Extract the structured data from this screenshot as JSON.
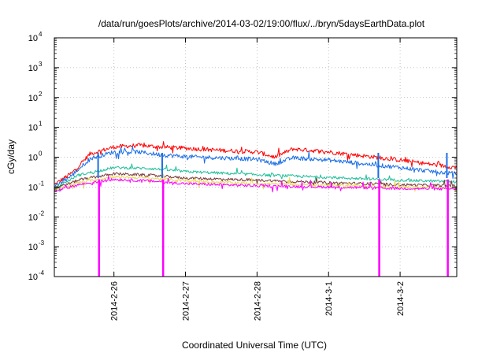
{
  "chart_data": {
    "type": "line",
    "title": "/data/run/goesPlots/archive/2014-03-02/19:00/flux/../bryn/5daysEarthData.plot",
    "xlabel": "Coordinated Universal Time (UTC)",
    "ylabel": "cGy/day",
    "yscale": "log",
    "ylim": [
      0.0001,
      10000
    ],
    "y_ticks": [
      {
        "base": "10",
        "exp": "-4",
        "value": 0.0001
      },
      {
        "base": "10",
        "exp": "-3",
        "value": 0.001
      },
      {
        "base": "10",
        "exp": "-2",
        "value": 0.01
      },
      {
        "base": "10",
        "exp": "-1",
        "value": 0.1
      },
      {
        "base": "10",
        "exp": "0",
        "value": 1
      },
      {
        "base": "10",
        "exp": "1",
        "value": 10
      },
      {
        "base": "10",
        "exp": "2",
        "value": 100
      },
      {
        "base": "10",
        "exp": "3",
        "value": 1000
      },
      {
        "base": "10",
        "exp": "4",
        "value": 10000
      }
    ],
    "xlim": [
      "2014-02-25T04:00",
      "2014-03-02T19:00"
    ],
    "x_ticks": [
      {
        "label": "2014-2-26",
        "value": "2014-02-26T00:00"
      },
      {
        "label": "2014-2-27",
        "value": "2014-02-27T00:00"
      },
      {
        "label": "2014-2-28",
        "value": "2014-02-28T00:00"
      },
      {
        "label": "2014-3-1",
        "value": "2014-03-01T00:00"
      },
      {
        "label": "2014-3-2",
        "value": "2014-03-02T00:00"
      }
    ],
    "grid": true,
    "series": [
      {
        "color": "#ff0000",
        "x": [
          "2014-02-25T04:00",
          "2014-02-25T10:00",
          "2014-02-25T16:00",
          "2014-02-26T00:00",
          "2014-02-26T08:00",
          "2014-02-26T16:00",
          "2014-02-27T00:00",
          "2014-02-27T12:00",
          "2014-02-28T00:00",
          "2014-02-28T06:00",
          "2014-02-28T12:00",
          "2014-03-01T00:00",
          "2014-03-01T12:00",
          "2014-03-02T00:00",
          "2014-03-02T12:00",
          "2014-03-02T19:00"
        ],
        "y": [
          0.12,
          0.3,
          1.3,
          2.2,
          2.5,
          2.2,
          2.0,
          1.7,
          1.5,
          1.0,
          1.9,
          1.5,
          1.1,
          0.8,
          0.55,
          0.45
        ]
      },
      {
        "color": "#1a6ee6",
        "x": [
          "2014-02-25T04:00",
          "2014-02-25T10:00",
          "2014-02-25T16:00",
          "2014-02-26T00:00",
          "2014-02-26T08:00",
          "2014-02-26T16:00",
          "2014-02-27T00:00",
          "2014-02-27T12:00",
          "2014-02-28T00:00",
          "2014-02-28T06:00",
          "2014-02-28T12:00",
          "2014-03-01T00:00",
          "2014-03-01T12:00",
          "2014-03-02T00:00",
          "2014-03-02T12:00",
          "2014-03-02T19:00"
        ],
        "y": [
          0.1,
          0.25,
          0.9,
          1.5,
          1.5,
          1.2,
          1.05,
          0.95,
          0.85,
          0.6,
          0.95,
          0.8,
          0.6,
          0.45,
          0.32,
          0.28
        ]
      },
      {
        "color": "#1fbf9a",
        "x": [
          "2014-02-25T04:00",
          "2014-02-25T12:00",
          "2014-02-26T00:00",
          "2014-02-26T12:00",
          "2014-02-27T00:00",
          "2014-02-28T00:00",
          "2014-03-01T00:00",
          "2014-03-02T00:00",
          "2014-03-02T19:00"
        ],
        "y": [
          0.09,
          0.25,
          0.45,
          0.42,
          0.33,
          0.26,
          0.21,
          0.17,
          0.15
        ]
      },
      {
        "color": "#7b3a3a",
        "x": [
          "2014-02-25T04:00",
          "2014-02-25T12:00",
          "2014-02-26T00:00",
          "2014-02-26T12:00",
          "2014-02-27T00:00",
          "2014-02-28T00:00",
          "2014-03-01T00:00",
          "2014-03-02T00:00",
          "2014-03-02T19:00"
        ],
        "y": [
          0.085,
          0.17,
          0.28,
          0.25,
          0.2,
          0.17,
          0.14,
          0.12,
          0.11
        ]
      },
      {
        "color": "#e6d85a",
        "x": [
          "2014-02-25T04:00",
          "2014-02-25T12:00",
          "2014-02-26T00:00",
          "2014-02-26T12:00",
          "2014-02-27T00:00",
          "2014-02-28T00:00",
          "2014-03-01T00:00",
          "2014-03-02T00:00",
          "2014-03-02T19:00"
        ],
        "y": [
          0.08,
          0.14,
          0.22,
          0.2,
          0.16,
          0.13,
          0.115,
          0.1,
          0.095
        ]
      },
      {
        "color": "#ff00ff",
        "x": [
          "2014-02-25T04:00",
          "2014-02-25T12:00",
          "2014-02-26T00:00",
          "2014-02-26T12:00",
          "2014-02-27T00:00",
          "2014-02-28T00:00",
          "2014-03-01T00:00",
          "2014-03-02T00:00",
          "2014-03-02T19:00"
        ],
        "y": [
          0.07,
          0.12,
          0.18,
          0.16,
          0.13,
          0.11,
          0.1,
          0.09,
          0.085
        ]
      }
    ],
    "dropouts": [
      {
        "x": "2014-02-25T19:00",
        "color": "#ff00ff"
      },
      {
        "x": "2014-02-26T16:30",
        "color": "#ff00ff"
      },
      {
        "x": "2014-03-01T17:00",
        "color": "#ff00ff"
      },
      {
        "x": "2014-03-02T16:00",
        "color": "#ff00ff"
      }
    ]
  }
}
